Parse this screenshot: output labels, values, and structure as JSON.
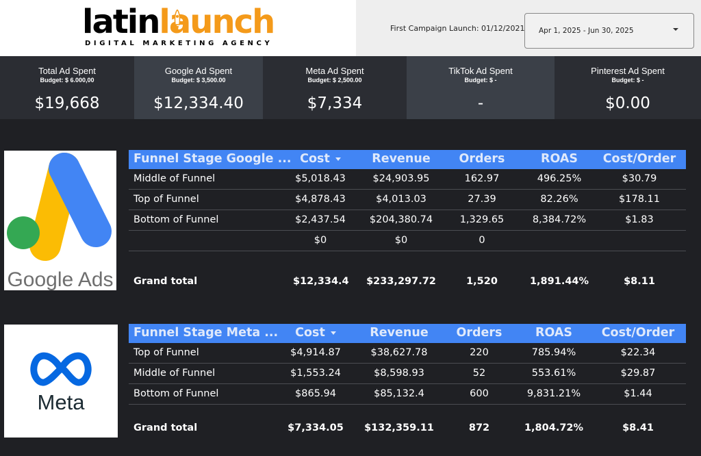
{
  "brand": {
    "logo_word_1": "latin",
    "logo_word_2": "launch",
    "tagline": "DIGITAL MARKETING AGENCY",
    "accent_color": "#f49a1a"
  },
  "header": {
    "launch_label": "First Campaign Launch: 01/12/2021",
    "date_range": "Apr 1, 2025 - Jun 30, 2025"
  },
  "kpis": [
    {
      "title": "Total Ad Spent",
      "budget": "Budget: $ 6.000,00",
      "value": "$19,668"
    },
    {
      "title": "Google Ad Spent",
      "budget": "Budget: $ 3,500.00",
      "value": "$12,334.40"
    },
    {
      "title": "Meta Ad Spent",
      "budget": "Budget: $ 2,500.00",
      "value": "$7,334"
    },
    {
      "title": "TikTok Ad Spent",
      "budget": "Budget: $ -",
      "value": "-"
    },
    {
      "title": "Pinterest Ad Spent",
      "budget": "Budget: $ -",
      "value": "$0.00"
    }
  ],
  "google_logo": {
    "text": "Google Ads"
  },
  "meta_logo": {
    "text": "Meta"
  },
  "google_table": {
    "headers": [
      "Funnel Stage Google ...",
      "Cost",
      "Revenue",
      "Orders",
      "ROAS",
      "Cost/Order"
    ],
    "rows": [
      [
        "Middle of Funnel",
        "$5,018.43",
        "$24,903.95",
        "162.97",
        "496.25%",
        "$30.79"
      ],
      [
        "Top of Funnel",
        "$4,878.43",
        "$4,013.03",
        "27.39",
        "82.26%",
        "$178.11"
      ],
      [
        "Bottom of Funnel",
        "$2,437.54",
        "$204,380.74",
        "1,329.65",
        "8,384.72%",
        "$1.83"
      ],
      [
        "",
        "$0",
        "$0",
        "0",
        "",
        ""
      ]
    ],
    "total": [
      "Grand total",
      "$12,334.4",
      "$233,297.72",
      "1,520",
      "1,891.44%",
      "$8.11"
    ]
  },
  "meta_table": {
    "headers": [
      "Funnel Stage Meta ...",
      "Cost",
      "Revenue",
      "Orders",
      "ROAS",
      "Cost/Order"
    ],
    "rows": [
      [
        "Top of Funnel",
        "$4,914.87",
        "$38,627.78",
        "220",
        "785.94%",
        "$22.34"
      ],
      [
        "Middle of Funnel",
        "$1,553.24",
        "$8,598.93",
        "52",
        "553.61%",
        "$29.87"
      ],
      [
        "Bottom of Funnel",
        "$865.94",
        "$85,132.4",
        "600",
        "9,831.21%",
        "$1.44"
      ]
    ],
    "total": [
      "Grand total",
      "$7,334.05",
      "$132,359.11",
      "872",
      "1,804.72%",
      "$8.41"
    ]
  }
}
